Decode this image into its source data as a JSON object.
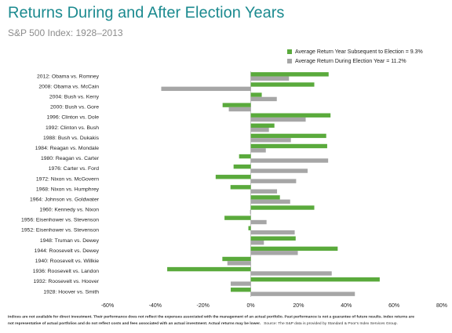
{
  "chart_data": {
    "type": "bar",
    "orientation": "horizontal",
    "title": "Returns During and After Election Years",
    "subtitle": "S&P 500 Index: 1928–2013",
    "categories": [
      "2012: Obama vs. Romney",
      "2008: Obama vs. McCain",
      "2004: Bush vs. Kerry",
      "2000: Bush vs. Gore",
      "1996: Clinton vs. Dole",
      "1992: Clinton vs. Bush",
      "1988: Bush vs. Dukakis",
      "1984: Reagan vs. Mondale",
      "1980: Reagan vs. Carter",
      "1976: Carter vs. Ford",
      "1972: Nixon vs. McGovern",
      "1968: Nixon vs. Humphrey",
      "1964: Johnson vs. Goldwater",
      "1960: Kennedy vs. Nixon",
      "1956: Eisenhower vs. Stevenson",
      "1952: Eisenhower vs. Stevenson",
      "1948: Truman vs. Dewey",
      "1944: Roosevelt vs. Dewey",
      "1940: Roosevelt vs. Willkie",
      "1936: Roosevelt vs. Landon",
      "1932: Roosevelt vs. Hoover",
      "1928: Hoover vs. Smith"
    ],
    "series": [
      {
        "name": "Average Return Year Subsequent to Election = 9.3%",
        "color": "#5aaa3c",
        "values": [
          32.6,
          26.6,
          4.6,
          -11.8,
          33.4,
          9.9,
          31.6,
          32,
          -4.9,
          -7.2,
          -14.7,
          -8.5,
          12.2,
          26.6,
          -11,
          -1,
          18.8,
          36.4,
          -11.9,
          -35,
          54,
          -8.4
        ]
      },
      {
        "name": "Average Return During Election Year = 11.2%",
        "color": "#a6a6a6",
        "values": [
          16,
          -37.5,
          10.9,
          -9.2,
          23,
          7.6,
          16.8,
          6.3,
          32.4,
          23.8,
          19,
          11,
          16.5,
          -0.3,
          6.6,
          18.4,
          5.5,
          19.7,
          -9.8,
          33.9,
          -8.4,
          43.6
        ]
      }
    ],
    "xlim": [
      -60,
      80
    ],
    "xticks": [
      {
        "value": -60,
        "label": "-60%"
      },
      {
        "value": -40,
        "label": "-40%"
      },
      {
        "value": -20,
        "label": "-20%"
      },
      {
        "value": 0,
        "label": "0%"
      },
      {
        "value": 20,
        "label": "20%"
      },
      {
        "value": 40,
        "label": "40%"
      },
      {
        "value": 60,
        "label": "60%"
      },
      {
        "value": 80,
        "label": "80%"
      }
    ],
    "legend": "top-right",
    "footnote": [
      "Indices are not available for direct investment. Their performance does not reflect the expenses associated with the management of an actual portfolio. Past performance is not a guarantee of future results. Index returns are",
      "not representative of actual portfolios and do not reflect costs and fees associated with an actual investment. Actual returns may be lower."
    ],
    "source": "Source: The S&P data is provided by Standard & Poor's Index Services Group."
  }
}
